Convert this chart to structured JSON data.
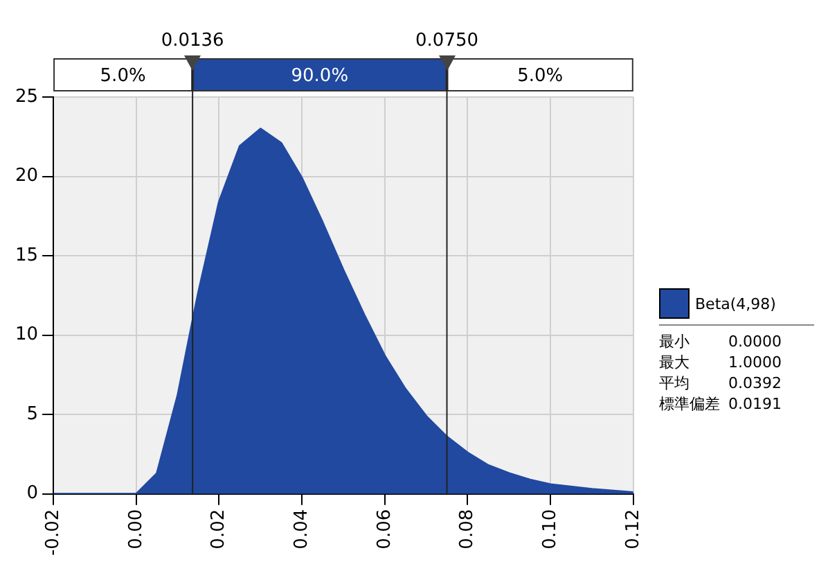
{
  "chart_data": {
    "type": "area",
    "x": [
      -0.02,
      -0.01,
      0,
      0.005,
      0.01,
      0.0136,
      0.015,
      0.02,
      0.025,
      0.03,
      0.035,
      0.04,
      0.045,
      0.05,
      0.055,
      0.06,
      0.065,
      0.07,
      0.075,
      0.08,
      0.085,
      0.09,
      0.095,
      0.1,
      0.11,
      0.12
    ],
    "series": [
      {
        "name": "Beta(4,98)",
        "color": "#2149a0",
        "values": [
          0,
          0,
          0,
          1.3,
          6.2,
          10.9,
          12.7,
          18.4,
          21.9,
          23.0,
          22.1,
          19.9,
          17.1,
          14.1,
          11.3,
          8.7,
          6.6,
          4.9,
          3.6,
          2.6,
          1.8,
          1.3,
          0.9,
          0.6,
          0.3,
          0.1
        ]
      }
    ],
    "xlim": [
      -0.02,
      0.12
    ],
    "xticks": [
      {
        "value": -0.02,
        "label": "-0.02"
      },
      {
        "value": 0,
        "label": "0.00"
      },
      {
        "value": 0.02,
        "label": "0.02"
      },
      {
        "value": 0.04,
        "label": "0.04"
      },
      {
        "value": 0.06,
        "label": "0.06"
      },
      {
        "value": 0.08,
        "label": "0.08"
      },
      {
        "value": 0.1,
        "label": "0.10"
      },
      {
        "value": 0.12,
        "label": "0.12"
      }
    ],
    "ylim": [
      0,
      25
    ],
    "yticks": [
      0,
      5,
      10,
      15,
      20,
      25
    ],
    "grid": true,
    "legend": "right",
    "ref_lines": [
      {
        "axis": "x",
        "value": 0.0136,
        "label": "0.0136"
      },
      {
        "axis": "x",
        "value": 0.075,
        "label": "0.0750"
      }
    ],
    "annotations": [
      "5.0%",
      "90.0%",
      "5.0%",
      "最小",
      "0.0000",
      "最大",
      "1.0000",
      "平均",
      "0.0392",
      "標準偏差",
      "0.0191"
    ]
  }
}
